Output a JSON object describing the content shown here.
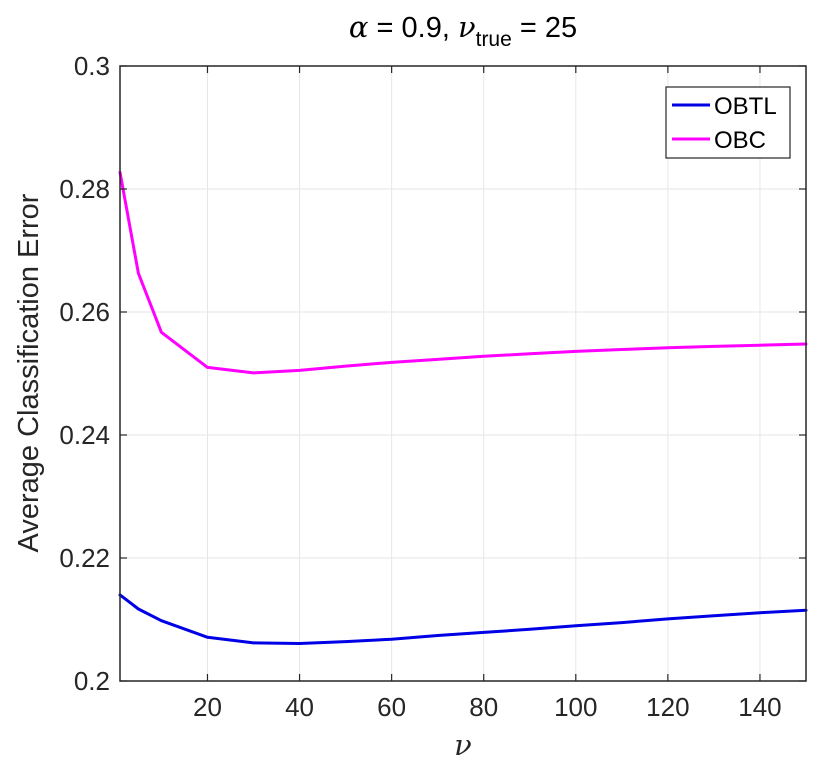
{
  "chart_data": {
    "type": "line",
    "title": {
      "alpha_symbol": "α",
      "alpha_rest": " = 0.9, ",
      "nu_symbol": "ν",
      "nu_subscript": "true",
      "nu_rest": " = 25"
    },
    "xlabel": "ν",
    "ylabel": "Average Classification Error",
    "xlim": [
      1,
      150
    ],
    "ylim": [
      0.2,
      0.3
    ],
    "x_ticks": [
      20,
      40,
      60,
      80,
      100,
      120,
      140
    ],
    "y_ticks": [
      0.2,
      0.22,
      0.24,
      0.26,
      0.28,
      0.3
    ],
    "y_tick_labels": [
      "0.2",
      "0.22",
      "0.24",
      "0.26",
      "0.28",
      "0.3"
    ],
    "grid": true,
    "legend_position": "top-right",
    "series": [
      {
        "name": "OBTL",
        "color": "#0000e6",
        "x": [
          1,
          5,
          10,
          20,
          30,
          40,
          50,
          60,
          70,
          80,
          90,
          100,
          110,
          120,
          130,
          140,
          150
        ],
        "y": [
          0.214,
          0.2117,
          0.2098,
          0.2071,
          0.2062,
          0.2061,
          0.2064,
          0.2068,
          0.2074,
          0.2079,
          0.2084,
          0.209,
          0.2095,
          0.2101,
          0.2106,
          0.2111,
          0.2115
        ]
      },
      {
        "name": "OBC",
        "color": "#ff00ff",
        "x": [
          1,
          5,
          10,
          20,
          30,
          40,
          50,
          60,
          70,
          80,
          90,
          100,
          110,
          120,
          130,
          140,
          150
        ],
        "y": [
          0.2827,
          0.2663,
          0.2567,
          0.251,
          0.2501,
          0.2505,
          0.2512,
          0.2518,
          0.2523,
          0.2528,
          0.2532,
          0.2536,
          0.2539,
          0.2542,
          0.2544,
          0.2546,
          0.2548
        ]
      }
    ]
  }
}
